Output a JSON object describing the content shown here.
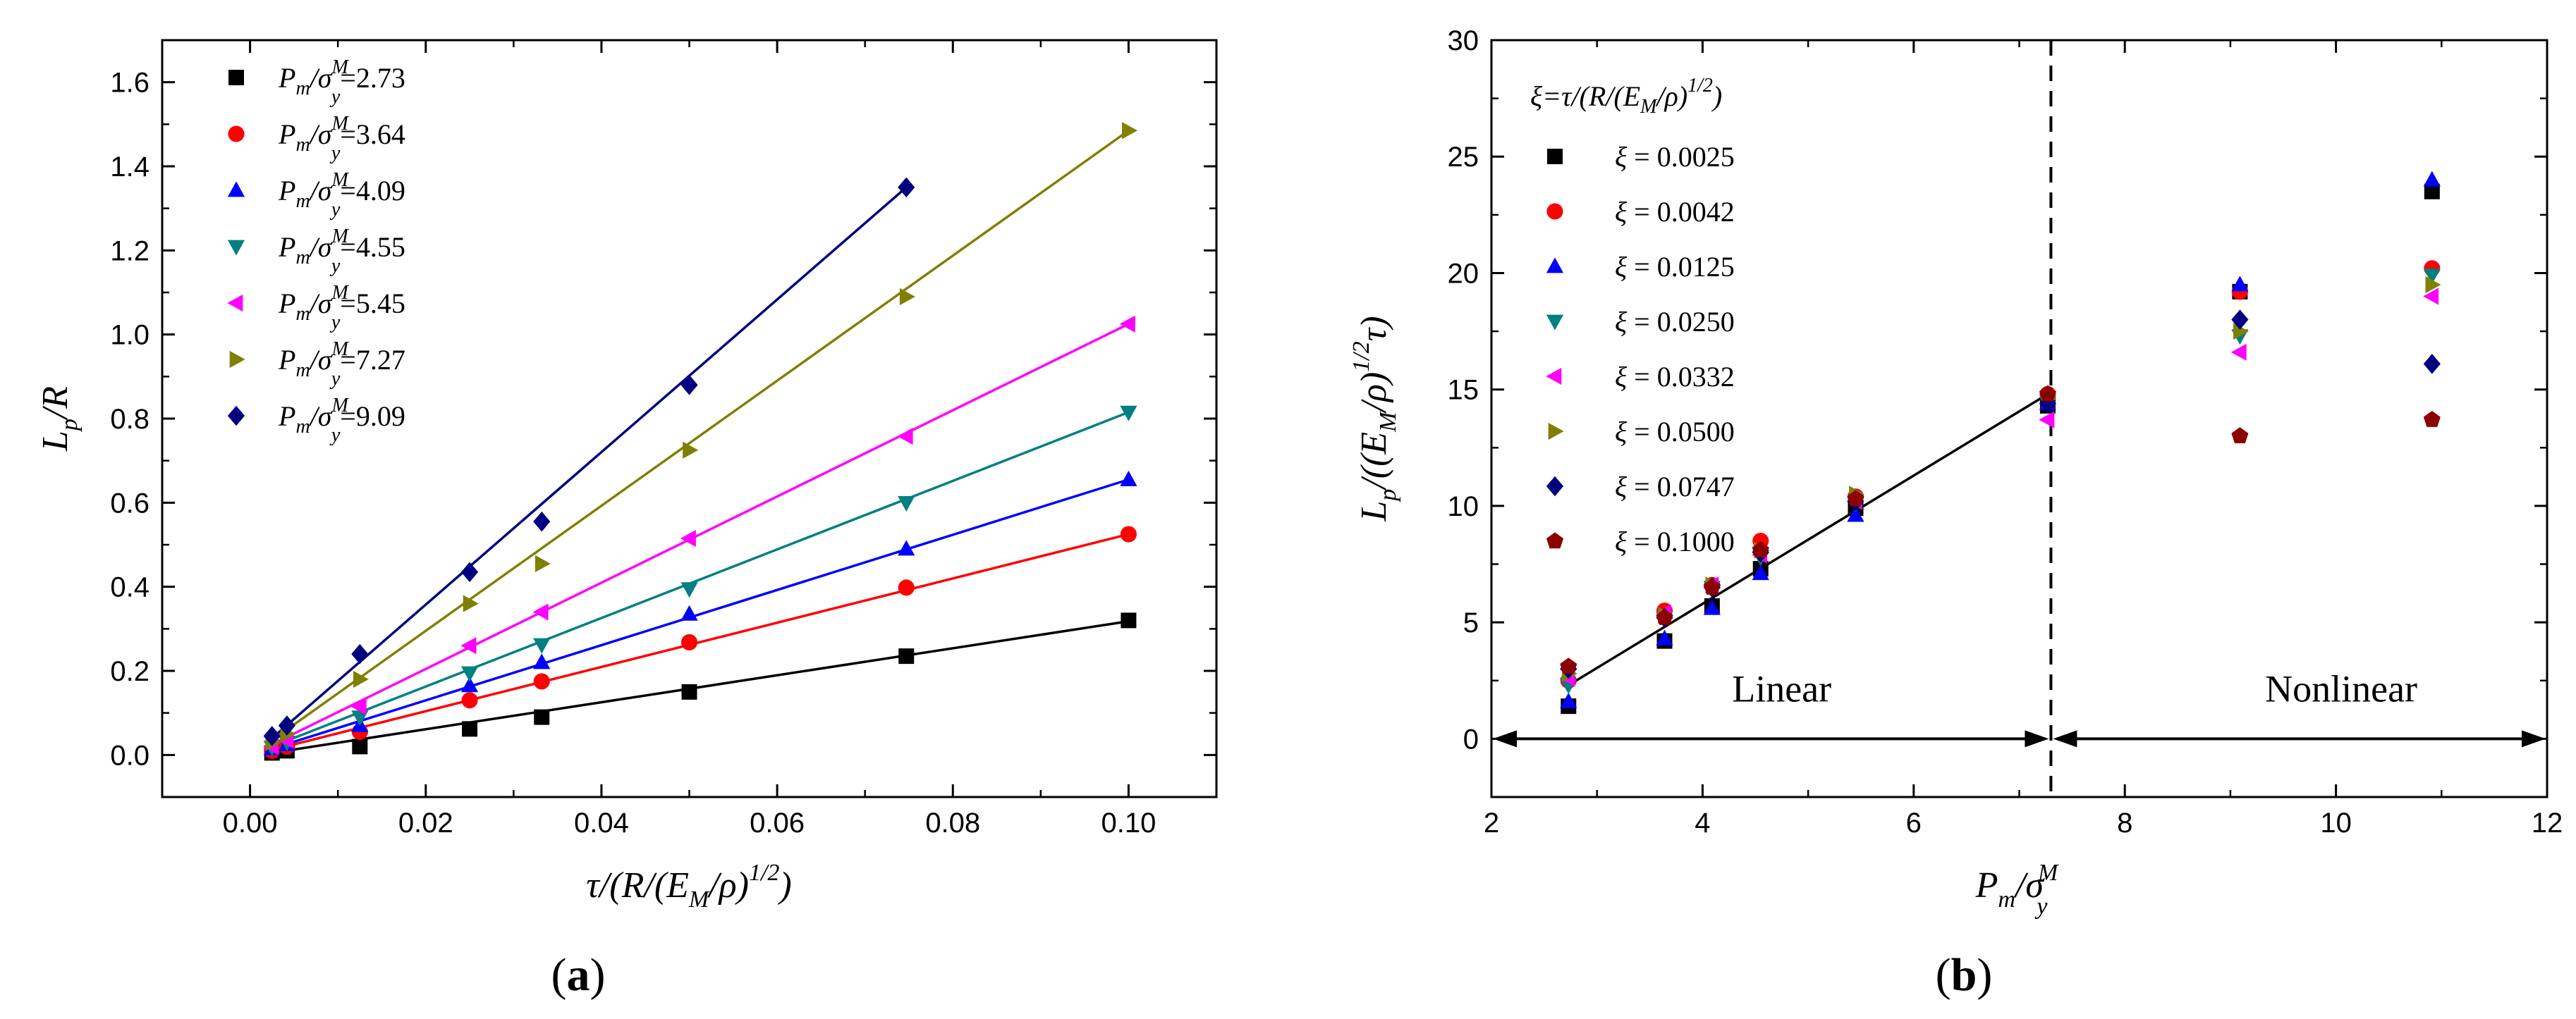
{
  "chart_data": [
    {
      "panel": "a",
      "type": "scatter",
      "panel_label": "(a)",
      "xlabel": "τ/(R/(E_M/ρ)^(1/2))",
      "ylabel": "L_p/R",
      "xlim": [
        -0.01,
        0.11
      ],
      "ylim": [
        -0.1,
        1.7
      ],
      "xticks": [
        0.0,
        0.02,
        0.04,
        0.06,
        0.08,
        0.1
      ],
      "xtick_labels": [
        "0.00",
        "0.02",
        "0.04",
        "0.06",
        "0.08",
        "0.10"
      ],
      "yticks": [
        0.0,
        0.2,
        0.4,
        0.6,
        0.8,
        1.0,
        1.2,
        1.4,
        1.6
      ],
      "ytick_labels": [
        "0.0",
        "0.2",
        "0.4",
        "0.6",
        "0.8",
        "1.0",
        "1.2",
        "1.4",
        "1.6"
      ],
      "legend_position": "top-left",
      "legend_prefix": "P_m/σ_y^M=",
      "series": [
        {
          "name": "2.73",
          "marker": "square",
          "color": "#000000",
          "x": [
            0.0025,
            0.0042,
            0.0125,
            0.025,
            0.0332,
            0.05,
            0.0747,
            0.1
          ],
          "y": [
            0.005,
            0.01,
            0.02,
            0.062,
            0.09,
            0.15,
            0.235,
            0.32
          ],
          "fit": [
            [
              0.0025,
              0.005
            ],
            [
              0.1,
              0.318
            ]
          ]
        },
        {
          "name": "3.64",
          "marker": "circle",
          "color": "#ff0000",
          "x": [
            0.0025,
            0.0042,
            0.0125,
            0.025,
            0.0332,
            0.05,
            0.0747,
            0.1
          ],
          "y": [
            0.01,
            0.02,
            0.055,
            0.13,
            0.175,
            0.268,
            0.398,
            0.525
          ],
          "fit": [
            [
              0.0025,
              0.012
            ],
            [
              0.1,
              0.525
            ]
          ]
        },
        {
          "name": "4.09",
          "marker": "triangle-up",
          "color": "#0000ff",
          "x": [
            0.0025,
            0.0042,
            0.0125,
            0.025,
            0.0332,
            0.05,
            0.0747,
            0.1
          ],
          "y": [
            0.015,
            0.025,
            0.07,
            0.165,
            0.22,
            0.335,
            0.49,
            0.655
          ],
          "fit": [
            [
              0.0025,
              0.015
            ],
            [
              0.1,
              0.655
            ]
          ]
        },
        {
          "name": "4.55",
          "marker": "triangle-down",
          "color": "#008080",
          "x": [
            0.0025,
            0.0042,
            0.0125,
            0.025,
            0.0332,
            0.05,
            0.0747,
            0.1
          ],
          "y": [
            0.018,
            0.03,
            0.09,
            0.195,
            0.262,
            0.395,
            0.6,
            0.815
          ],
          "fit": [
            [
              0.0025,
              0.02
            ],
            [
              0.1,
              0.815
            ]
          ]
        },
        {
          "name": "5.45",
          "marker": "triangle-left",
          "color": "#ff00ff",
          "x": [
            0.0025,
            0.0042,
            0.0125,
            0.025,
            0.0332,
            0.05,
            0.0747,
            0.1
          ],
          "y": [
            0.02,
            0.035,
            0.115,
            0.26,
            0.34,
            0.515,
            0.758,
            1.025
          ],
          "fit": [
            [
              0.0025,
              0.025
            ],
            [
              0.1,
              1.025
            ]
          ]
        },
        {
          "name": "7.27",
          "marker": "triangle-right",
          "color": "#808000",
          "x": [
            0.0025,
            0.0042,
            0.0125,
            0.025,
            0.0332,
            0.05,
            0.0747,
            0.1
          ],
          "y": [
            0.03,
            0.05,
            0.18,
            0.36,
            0.455,
            0.725,
            1.09,
            1.485
          ],
          "fit": [
            [
              0.0025,
              0.035
            ],
            [
              0.1,
              1.485
            ]
          ]
        },
        {
          "name": "9.09",
          "marker": "diamond",
          "color": "#000080",
          "x": [
            0.0025,
            0.0042,
            0.0125,
            0.025,
            0.0332,
            0.05,
            0.0747
          ],
          "y": [
            0.045,
            0.07,
            0.24,
            0.435,
            0.555,
            0.88,
            1.35
          ],
          "fit": [
            [
              0.0025,
              0.04
            ],
            [
              0.0747,
              1.35
            ]
          ]
        }
      ]
    },
    {
      "panel": "b",
      "type": "scatter",
      "panel_label": "(b)",
      "xlabel": "P_m/σ_y^M",
      "ylabel": "L_p/((E_M/ρ)^(1/2) τ)",
      "xlim": [
        2,
        12
      ],
      "ylim": [
        -2.5,
        30
      ],
      "xticks": [
        2,
        4,
        6,
        8,
        10,
        12
      ],
      "xtick_labels": [
        "2",
        "4",
        "6",
        "8",
        "10",
        "12"
      ],
      "yticks": [
        0,
        5,
        10,
        15,
        20,
        25,
        30
      ],
      "ytick_labels": [
        "0",
        "5",
        "10",
        "15",
        "20",
        "25",
        "30"
      ],
      "legend_position": "top-left",
      "legend_title": "ξ=τ/(R/(E_M/ρ)^(1/2))",
      "legend_prefix": "ξ = ",
      "fit_line": [
        [
          2.73,
          2.3
        ],
        [
          7.27,
          14.8
        ]
      ],
      "divider_x": 7.3,
      "region_arrow_y": 0,
      "regions": [
        {
          "label": "Linear",
          "x": 4.75,
          "y": 1.6
        },
        {
          "label": "Nonlinear",
          "x": 10.05,
          "y": 1.6
        }
      ],
      "x_values": [
        2.73,
        3.64,
        4.09,
        4.55,
        5.45,
        7.27,
        9.09,
        10.91
      ],
      "series": [
        {
          "name": "0.0025",
          "marker": "square",
          "color": "#000000",
          "y": [
            1.4,
            4.2,
            5.7,
            7.3,
            9.9,
            14.3,
            19.2,
            23.5
          ]
        },
        {
          "name": "0.0042",
          "marker": "circle",
          "color": "#ff0000",
          "y": [
            2.5,
            5.5,
            6.6,
            8.5,
            10.4,
            14.8,
            19.2,
            20.2
          ]
        },
        {
          "name": "0.0125",
          "marker": "triangle-up",
          "color": "#0000ff",
          "y": [
            1.6,
            4.3,
            5.6,
            7.1,
            9.6,
            14.4,
            19.5,
            24.0
          ]
        },
        {
          "name": "0.0250",
          "marker": "triangle-down",
          "color": "#008080",
          "y": [
            2.3,
            5.2,
            6.5,
            7.8,
            10.1,
            14.4,
            17.3,
            19.9
          ]
        },
        {
          "name": "0.0332",
          "marker": "triangle-left",
          "color": "#ff00ff",
          "y": [
            2.6,
            5.4,
            6.6,
            7.9,
            10.2,
            13.7,
            16.6,
            19.0
          ]
        },
        {
          "name": "0.0500",
          "marker": "triangle-right",
          "color": "#808000",
          "y": [
            2.8,
            5.3,
            6.6,
            8.1,
            10.5,
            14.6,
            17.5,
            19.5
          ]
        },
        {
          "name": "0.0747",
          "marker": "diamond",
          "color": "#000080",
          "y": [
            3.0,
            5.2,
            6.5,
            8.0,
            10.2,
            14.4,
            18.0,
            16.1
          ]
        },
        {
          "name": "0.1000",
          "marker": "pentagon",
          "color": "#8b0000",
          "y": [
            3.1,
            5.2,
            6.5,
            8.1,
            10.3,
            14.8,
            13.0,
            13.7
          ]
        }
      ]
    }
  ]
}
